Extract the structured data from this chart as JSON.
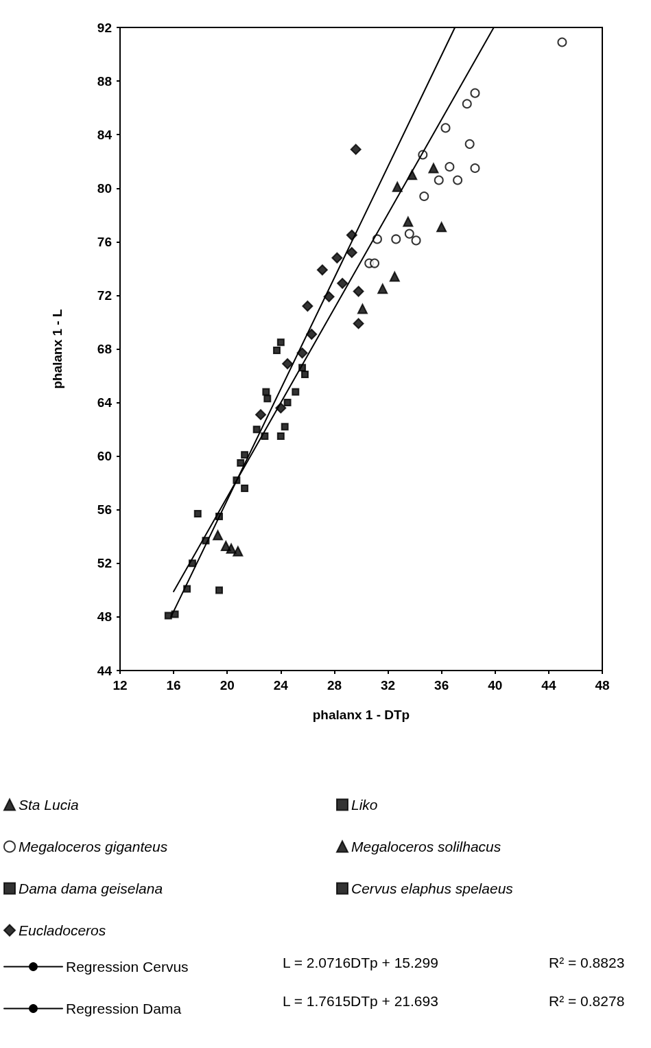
{
  "chart_data": {
    "type": "scatter",
    "xlabel": "phalanx 1 - DTp",
    "ylabel": "phalanx 1 - L",
    "xlim": [
      12,
      48
    ],
    "xticks": [
      12,
      16,
      20,
      24,
      28,
      32,
      36,
      40,
      44,
      48
    ],
    "ylim": [
      44,
      92
    ],
    "yticks": [
      44,
      48,
      52,
      56,
      60,
      64,
      68,
      72,
      76,
      80,
      84,
      88,
      92
    ],
    "grid": false,
    "legend": "bottom",
    "annotations": [
      "L = 2.0716DTp + 15.299",
      "R² = 0.8823",
      "L = 1.7615DTp + 21.693",
      "R² = 0.8278"
    ],
    "series": [
      {
        "name": "Sta Lucia",
        "color": "#000000",
        "marker": "triangle",
        "x": [
          19.3,
          19.9,
          20.8,
          20.3,
          33.8,
          36.0,
          32.5
        ],
        "values": [
          54.1,
          53.3,
          52.9,
          53.1,
          81.0,
          77.1,
          73.4
        ]
      },
      {
        "name": "Liko",
        "color": "#000000",
        "marker": "square",
        "x": [
          19.4,
          22.8,
          24.0,
          23.0,
          24.5,
          25.1,
          25.8,
          19.4
        ],
        "values": [
          50.0,
          61.5,
          61.5,
          64.3,
          64.0,
          64.8,
          66.1,
          55.5
        ]
      },
      {
        "name": "Megaloceros giganteus",
        "color": "#000000",
        "marker": "circle",
        "x": [
          45.0,
          38.5,
          37.9,
          36.3,
          34.6,
          38.1,
          38.5,
          35.8,
          36.6,
          37.2,
          31.2,
          32.6,
          34.1,
          33.6,
          30.6,
          31.0,
          34.7
        ],
        "values": [
          90.9,
          87.1,
          86.3,
          84.5,
          82.5,
          83.3,
          81.5,
          80.6,
          81.6,
          80.6,
          76.2,
          76.2,
          76.1,
          76.6,
          74.4,
          74.4,
          79.4
        ]
      },
      {
        "name": "Megaloceros solilhacus",
        "color": "#000000",
        "marker": "triangle",
        "x": [
          32.7,
          35.4,
          33.5,
          31.6,
          30.1
        ],
        "values": [
          80.1,
          81.5,
          77.5,
          72.5,
          71.0
        ]
      },
      {
        "name": "Dama dama geiselana",
        "color": "#000000",
        "marker": "square",
        "x": [
          17.8,
          15.6,
          16.1,
          17.0,
          17.4,
          18.4,
          21.3,
          20.7,
          22.2
        ],
        "values": [
          55.7,
          48.1,
          48.2,
          50.1,
          52.0,
          53.7,
          60.1,
          58.2,
          62.0
        ]
      },
      {
        "name": "Cervus elaphus spelaeus",
        "color": "#000000",
        "marker": "square",
        "x": [
          24.0,
          23.7,
          21.3,
          21.0,
          24.3,
          25.6,
          22.9
        ],
        "values": [
          68.5,
          67.9,
          57.6,
          59.5,
          62.2,
          66.6,
          64.8
        ]
      },
      {
        "name": "Eucladoceros",
        "color": "#000000",
        "marker": "diamond",
        "x": [
          29.6,
          29.3,
          29.3,
          29.8,
          29.8,
          28.6,
          27.1,
          28.2,
          27.6,
          26.0,
          26.3,
          24.5,
          25.6,
          24.0,
          22.5
        ],
        "values": [
          82.9,
          75.2,
          76.5,
          72.3,
          69.9,
          72.9,
          73.9,
          74.8,
          71.9,
          71.2,
          69.1,
          66.9,
          67.7,
          63.6,
          63.1
        ]
      },
      {
        "name": "Regression Cervus",
        "type": "line",
        "color": "#000000",
        "marker": "none",
        "line_style": "solid",
        "x": [
          15.8,
          37.0
        ],
        "values": [
          48.0,
          92.0
        ]
      },
      {
        "name": "Regression Dama",
        "type": "line",
        "color": "#000000",
        "marker": "none",
        "line_style": "solid",
        "x": [
          16.0,
          39.9
        ],
        "values": [
          49.9,
          92.0
        ]
      }
    ]
  }
}
